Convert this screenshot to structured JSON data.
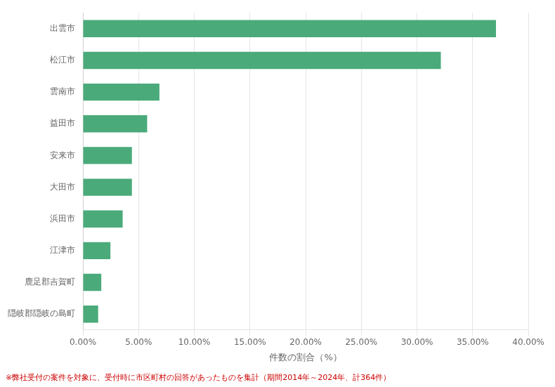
{
  "chart_data": {
    "type": "bar",
    "orientation": "horizontal",
    "categories": [
      "隠岐郡隠岐の島町",
      "鹿足郡吉賀町",
      "江津市",
      "浜田市",
      "大田市",
      "安来市",
      "益田市",
      "雲南市",
      "松江市",
      "出雲市"
    ],
    "values": [
      1.37,
      1.65,
      2.47,
      3.57,
      4.4,
      4.4,
      5.77,
      6.87,
      32.14,
      37.09
    ],
    "color": "#4aaa7a",
    "x_label": "件数の割合（%）",
    "xlim": [
      0,
      40
    ],
    "xticks": [
      {
        "value": 0,
        "label": "0.00%"
      },
      {
        "value": 5,
        "label": "5.00%"
      },
      {
        "value": 10,
        "label": "10.00%"
      },
      {
        "value": 15,
        "label": "15.00%"
      },
      {
        "value": 20,
        "label": "20.00%"
      },
      {
        "value": 25,
        "label": "25.00%"
      },
      {
        "value": 30,
        "label": "30.00%"
      },
      {
        "value": 35,
        "label": "35.00%"
      },
      {
        "value": 40,
        "label": "40.00%"
      }
    ],
    "grid": true,
    "annotations": [
      {
        "text": "※弊社受付の案件を対象に、受付時に市区町村の回答があったものを集計（期間2014年～2024年、計364件）",
        "color": "#cc0000"
      }
    ]
  }
}
